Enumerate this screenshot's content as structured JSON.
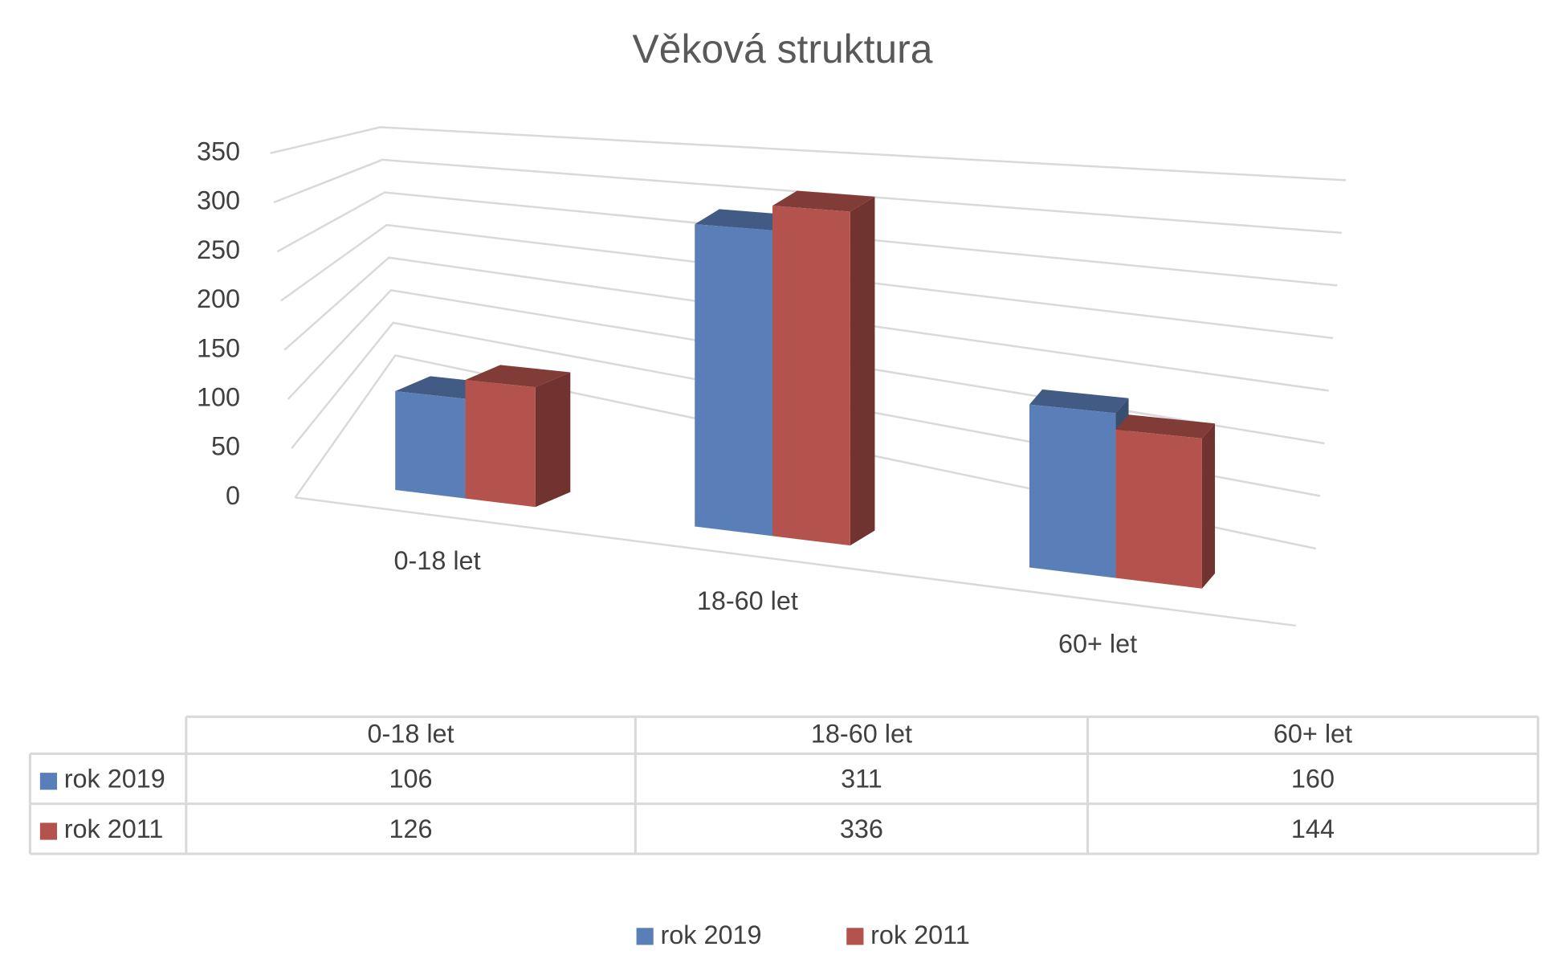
{
  "chart_data": {
    "type": "bar3d",
    "title": "Věková struktura",
    "categories": [
      "0-18 let",
      "18-60 let",
      "60+ let"
    ],
    "series": [
      {
        "name": "rok 2019",
        "color": "#5a7fb8",
        "values": [
          106,
          311,
          160
        ]
      },
      {
        "name": "rok 2011",
        "color": "#b4534e",
        "values": [
          126,
          336,
          144
        ]
      }
    ],
    "ylim": [
      0,
      350
    ],
    "yticks": [
      0,
      50,
      100,
      150,
      200,
      250,
      300,
      350
    ],
    "grid": true
  }
}
